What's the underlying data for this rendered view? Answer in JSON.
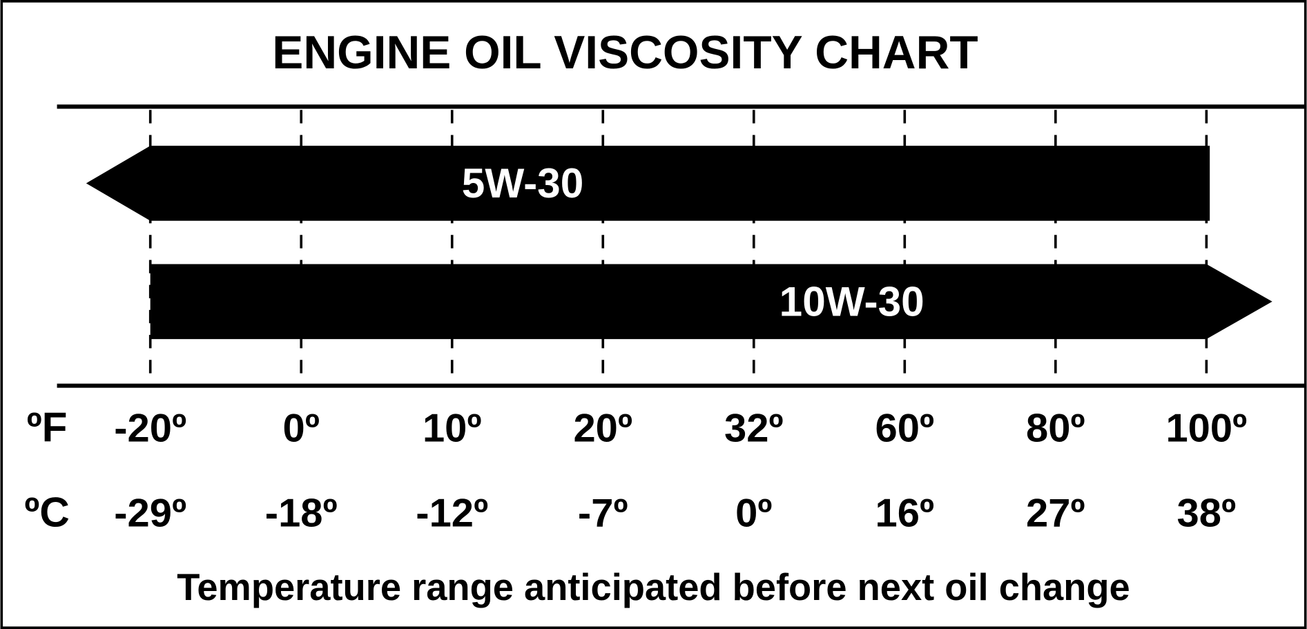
{
  "chart_data": {
    "type": "bar",
    "orientation": "horizontal-range",
    "title": "ENGINE OIL VISCOSITY CHART",
    "xlabel": "Temperature range anticipated before next oil change",
    "unit_labels": {
      "fahrenheit": "ºF",
      "celsius": "ºC"
    },
    "ticks_f": [
      "-20º",
      "0º",
      "10º",
      "20º",
      "32º",
      "60º",
      "80º",
      "100º"
    ],
    "ticks_c": [
      "-29º",
      "-18º",
      "-12º",
      "-7º",
      "0º",
      "16º",
      "27º",
      "38º"
    ],
    "tick_values_f": [
      -20,
      0,
      10,
      20,
      32,
      60,
      80,
      100
    ],
    "grid": "dashed vertical",
    "series": [
      {
        "name": "5W-30",
        "from_f": -20,
        "to_f": 100,
        "open_end": "left"
      },
      {
        "name": "10W-30",
        "from_f": -20,
        "to_f": 100,
        "open_end": "right"
      }
    ],
    "colors": {
      "bar": "#000000",
      "bar_text": "#ffffff",
      "background": "#ffffff"
    }
  }
}
